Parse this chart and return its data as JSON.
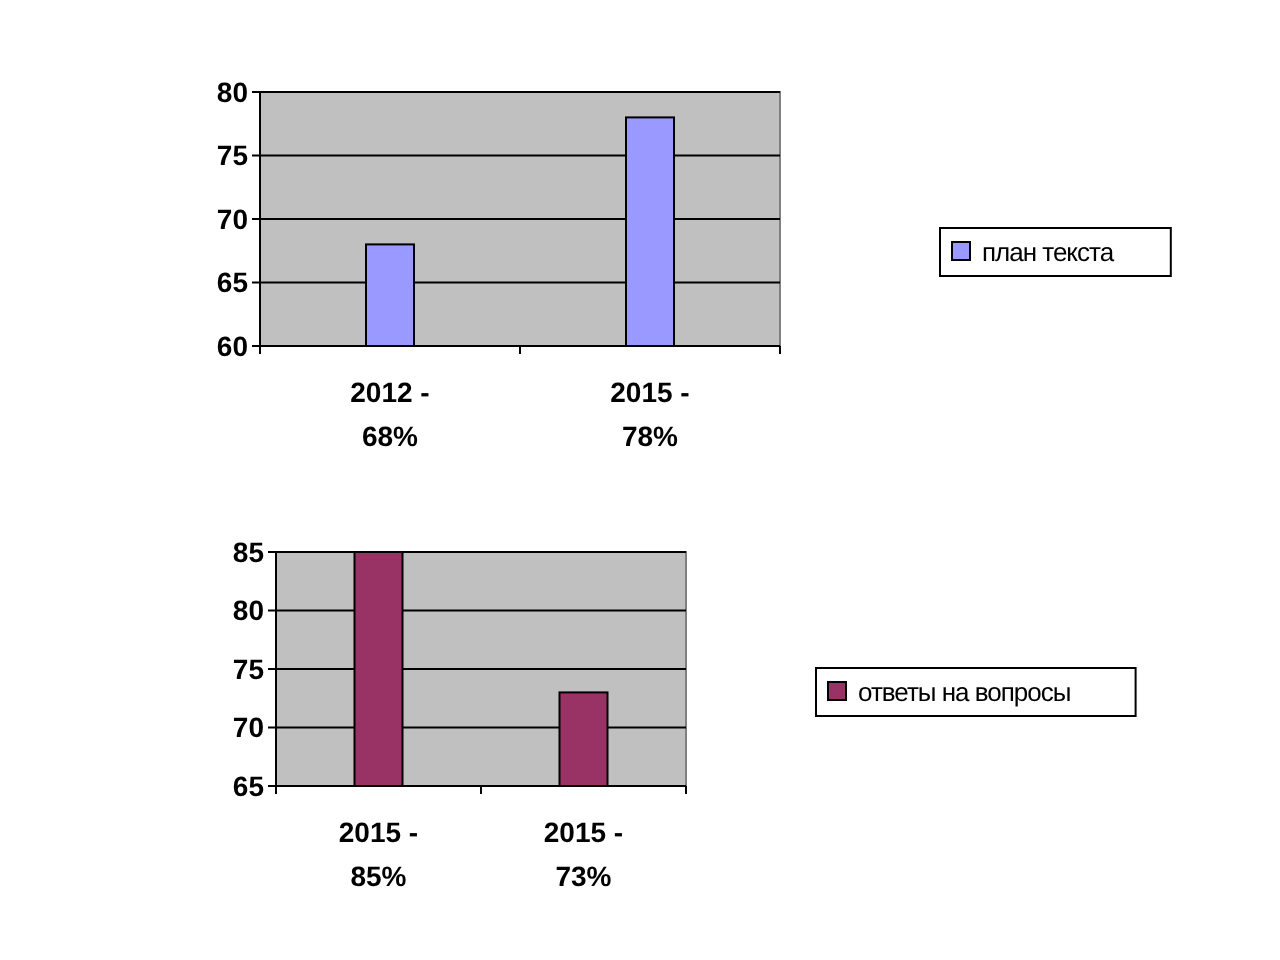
{
  "chart_data": [
    {
      "type": "bar",
      "categories": [
        "2012 - 68%",
        "2015 - 78%"
      ],
      "series": [
        {
          "name": "план текста",
          "color": "#9999ff",
          "values": [
            68,
            78
          ]
        }
      ],
      "ylim": [
        60,
        80
      ],
      "yticks": [
        60,
        65,
        70,
        75,
        80
      ],
      "grid": "y",
      "legend": "right"
    },
    {
      "type": "bar",
      "categories": [
        "2015 - 85%",
        "2015 - 73%"
      ],
      "series": [
        {
          "name": "ответы на вопросы",
          "color": "#993366",
          "values": [
            85,
            73
          ]
        }
      ],
      "ylim": [
        65,
        85
      ],
      "yticks": [
        65,
        70,
        75,
        80,
        85
      ],
      "grid": "y",
      "legend": "right"
    }
  ]
}
